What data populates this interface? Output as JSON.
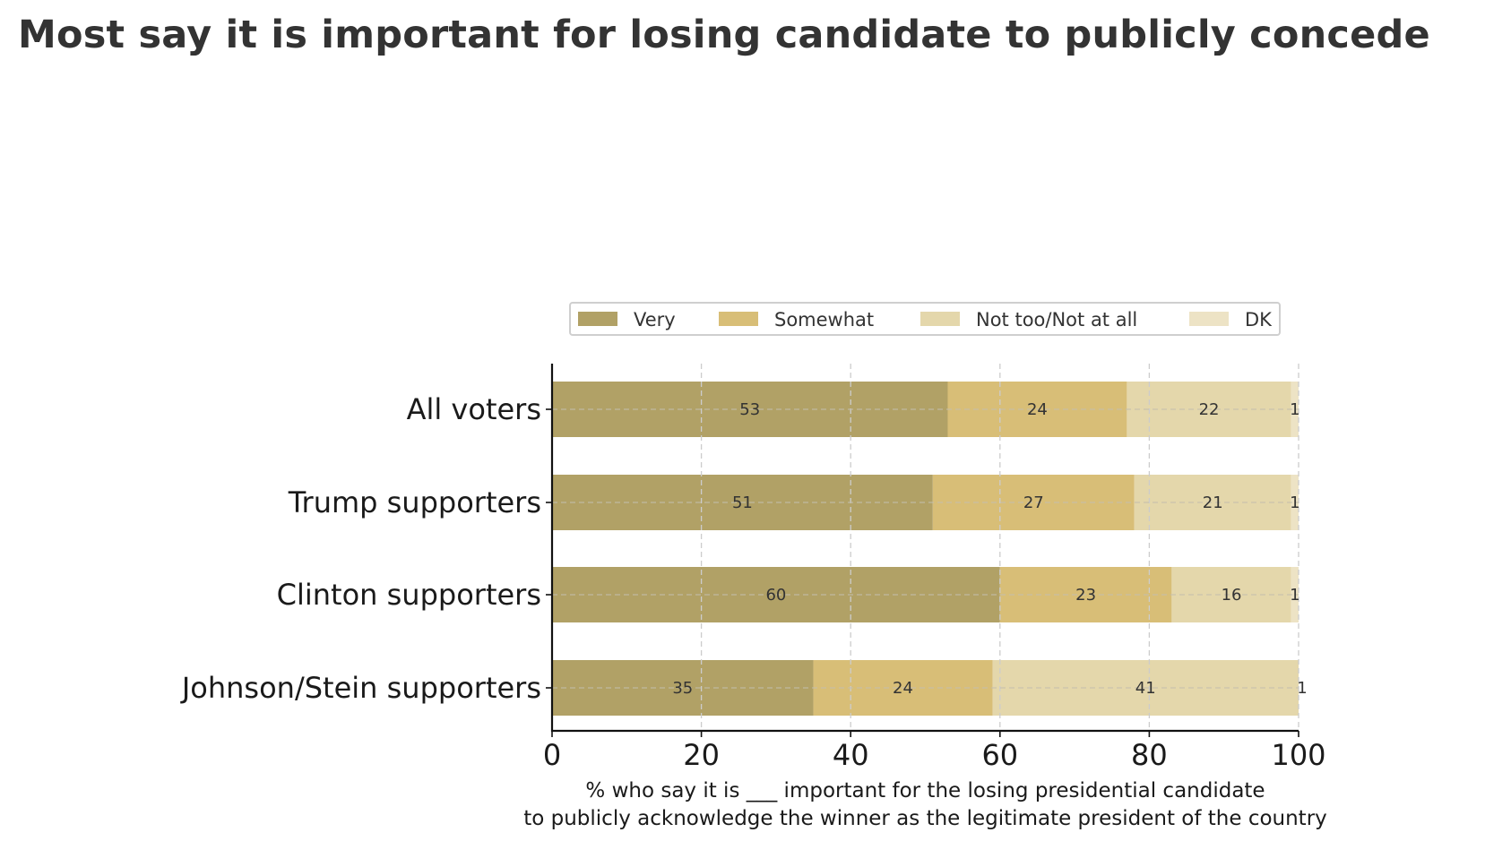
{
  "chart_data": {
    "type": "bar",
    "orientation": "horizontal",
    "stacked": true,
    "title": "Most say it is important for losing candidate to publicly concede",
    "categories": [
      "All voters",
      "Trump supporters",
      "Clinton supporters",
      "Johnson/Stein supporters"
    ],
    "series": [
      {
        "name": "Very",
        "color": "#b1a166",
        "values": [
          53,
          51,
          60,
          35
        ]
      },
      {
        "name": "Somewhat",
        "color": "#d8be77",
        "values": [
          24,
          27,
          23,
          24
        ]
      },
      {
        "name": "Not too/Not at all",
        "color": "#e4d7ab",
        "values": [
          22,
          21,
          16,
          41
        ]
      },
      {
        "name": "DK",
        "color": "#ede3c5",
        "values": [
          1,
          1,
          1,
          1
        ]
      }
    ],
    "xlabel": [
      "% who say it is ___ important for the losing presidential candidate",
      "to publicly acknowledge the winner as the legitimate president of the country"
    ],
    "xlim": [
      0,
      100
    ],
    "xticks": [
      0,
      20,
      40,
      60,
      80,
      100
    ],
    "grid": true,
    "legend_position": "top-center"
  }
}
